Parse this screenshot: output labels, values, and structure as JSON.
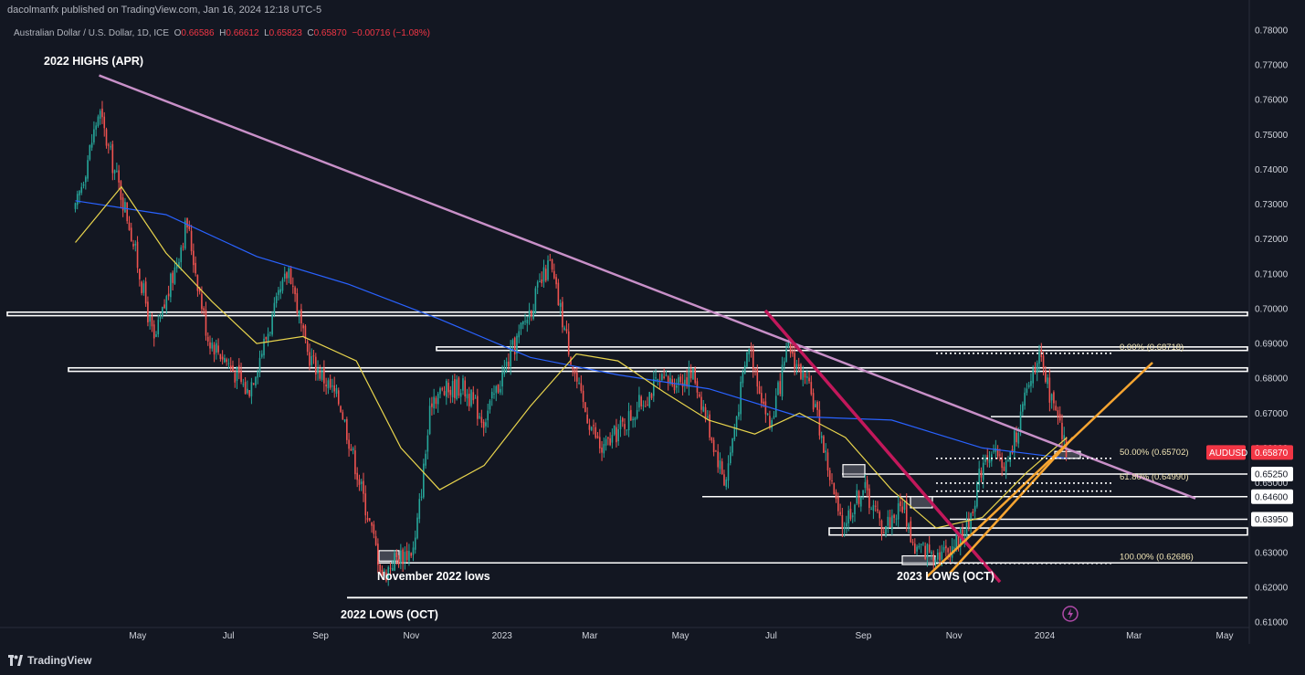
{
  "header": {
    "published": "dacolmanfx published on TradingView.com, Jan 16, 2024 12:18 UTC-5",
    "symbol": "Australian Dollar / U.S. Dollar, 1D, ICE",
    "o_label": "O",
    "o_value": "0.66586",
    "h_label": "H",
    "h_value": "0.66612",
    "l_label": "L",
    "l_value": "0.65823",
    "c_label": "C",
    "c_value": "0.65870",
    "change": "−0.00716 (−1.08%)"
  },
  "footer": {
    "brand": "TradingView"
  },
  "colors": {
    "background": "#131722",
    "up": "#26a69a",
    "down": "#ef5350",
    "sma50": "#e8d44d",
    "sma200": "#2962ff",
    "trendline": "#c890c8",
    "steep": "#c2185b",
    "support": "#f7a531",
    "price_tag": "#f23645"
  },
  "chart_data": {
    "type": "candlestick",
    "ylim": [
      0.61,
      0.78
    ],
    "y_ticks": [
      "0.78000",
      "0.77000",
      "0.76000",
      "0.75000",
      "0.74000",
      "0.73000",
      "0.72000",
      "0.71000",
      "0.70000",
      "0.69000",
      "0.68000",
      "0.67000",
      "0.66000",
      "0.65000",
      "0.64000",
      "0.63000",
      "0.62000",
      "0.61000"
    ],
    "x_ticks": [
      "May",
      "Jul",
      "Sep",
      "Nov",
      "2023",
      "Mar",
      "May",
      "Jul",
      "Sep",
      "Nov",
      "2024",
      "Mar",
      "May"
    ],
    "price_series": [
      [
        "2022-03-20",
        0.728
      ],
      [
        "2022-04-05",
        0.757
      ],
      [
        "2022-04-10",
        0.748
      ],
      [
        "2022-04-25",
        0.725
      ],
      [
        "2022-05-12",
        0.69
      ],
      [
        "2022-05-25",
        0.71
      ],
      [
        "2022-06-03",
        0.725
      ],
      [
        "2022-06-17",
        0.692
      ],
      [
        "2022-06-30",
        0.685
      ],
      [
        "2022-07-14",
        0.676
      ],
      [
        "2022-08-11",
        0.712
      ],
      [
        "2022-08-22",
        0.688
      ],
      [
        "2022-09-14",
        0.673
      ],
      [
        "2022-10-13",
        0.623
      ],
      [
        "2022-10-20",
        0.628
      ],
      [
        "2022-11-03",
        0.631
      ],
      [
        "2022-11-15",
        0.675
      ],
      [
        "2022-12-05",
        0.678
      ],
      [
        "2022-12-20",
        0.668
      ],
      [
        "2023-01-10",
        0.69
      ],
      [
        "2023-02-02",
        0.713
      ],
      [
        "2023-02-23",
        0.674
      ],
      [
        "2023-03-09",
        0.659
      ],
      [
        "2023-04-14",
        0.678
      ],
      [
        "2023-05-10",
        0.681
      ],
      [
        "2023-05-31",
        0.65
      ],
      [
        "2023-06-16",
        0.69
      ],
      [
        "2023-06-30",
        0.666
      ],
      [
        "2023-07-13",
        0.689
      ],
      [
        "2023-07-30",
        0.673
      ],
      [
        "2023-08-17",
        0.637
      ],
      [
        "2023-09-01",
        0.649
      ],
      [
        "2023-09-14",
        0.637
      ],
      [
        "2023-09-28",
        0.644
      ],
      [
        "2023-10-05",
        0.631
      ],
      [
        "2023-10-26",
        0.63
      ],
      [
        "2023-11-10",
        0.637
      ],
      [
        "2023-11-22",
        0.659
      ],
      [
        "2023-12-07",
        0.655
      ],
      [
        "2023-12-27",
        0.687
      ],
      [
        "2024-01-16",
        0.6587
      ]
    ],
    "sma50": [
      [
        "2022-03-20",
        0.719
      ],
      [
        "2022-04-20",
        0.735
      ],
      [
        "2022-05-20",
        0.716
      ],
      [
        "2022-06-20",
        0.702
      ],
      [
        "2022-07-20",
        0.69
      ],
      [
        "2022-08-20",
        0.692
      ],
      [
        "2022-09-25",
        0.685
      ],
      [
        "2022-10-25",
        0.66
      ],
      [
        "2022-11-20",
        0.648
      ],
      [
        "2022-12-20",
        0.655
      ],
      [
        "2023-01-20",
        0.672
      ],
      [
        "2023-02-20",
        0.687
      ],
      [
        "2023-03-20",
        0.685
      ],
      [
        "2023-04-20",
        0.676
      ],
      [
        "2023-05-20",
        0.668
      ],
      [
        "2023-06-20",
        0.664
      ],
      [
        "2023-07-20",
        0.67
      ],
      [
        "2023-08-20",
        0.663
      ],
      [
        "2023-09-20",
        0.648
      ],
      [
        "2023-10-20",
        0.637
      ],
      [
        "2023-11-20",
        0.64
      ],
      [
        "2023-12-20",
        0.653
      ],
      [
        "2024-01-16",
        0.663
      ]
    ],
    "sma200": [
      [
        "2022-03-20",
        0.731
      ],
      [
        "2022-05-20",
        0.727
      ],
      [
        "2022-07-20",
        0.715
      ],
      [
        "2022-09-20",
        0.707
      ],
      [
        "2022-11-20",
        0.697
      ],
      [
        "2023-01-20",
        0.686
      ],
      [
        "2023-03-20",
        0.681
      ],
      [
        "2023-05-20",
        0.677
      ],
      [
        "2023-07-20",
        0.669
      ],
      [
        "2023-09-20",
        0.668
      ],
      [
        "2023-11-20",
        0.66
      ],
      [
        "2024-01-16",
        0.657
      ]
    ],
    "horizontal_levels": [
      "0.69900",
      "0.69800",
      "0.68900",
      "0.68800",
      "0.68300",
      "0.68200",
      "0.66900",
      "0.65250",
      "0.64600",
      "0.63950",
      "0.63700",
      "0.63500",
      "0.62700",
      "0.61700"
    ],
    "fibonacci": [
      {
        "label": "0.00% (0.68718)",
        "value": 0.68718
      },
      {
        "label": "50.00% (0.65702)",
        "value": 0.65702
      },
      {
        "label": "61.80% (0.64990)",
        "value": 0.6499
      },
      {
        "label": "100.00% (0.62686)",
        "value": 0.62686
      }
    ],
    "current_price": {
      "symbol": "AUDUSD",
      "value": "0.65870"
    },
    "level_tags": [
      "0.65250",
      "0.64600",
      "0.63950"
    ],
    "annotations": [
      "2022 HIGHS (APR)",
      "November 2022 lows",
      "2022 LOWS (OCT)",
      "2023 LOWS (OCT)"
    ]
  }
}
